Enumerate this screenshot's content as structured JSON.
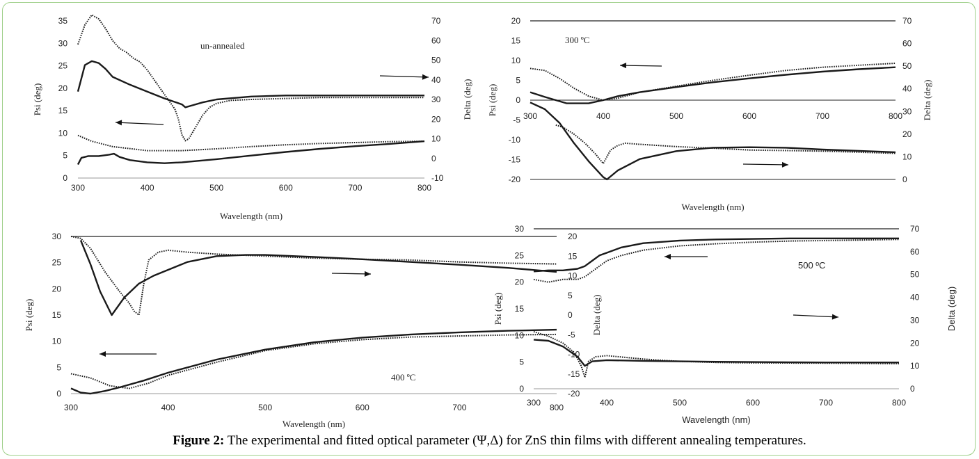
{
  "caption": {
    "label": "Figure 2:",
    "text": "The experimental and fitted optical parameter (Ψ,Δ) for ZnS thin films with different annealing temperatures."
  },
  "chart_data": [
    {
      "type": "line",
      "annotation": "un-annealed",
      "xlabel": "Wavelength  (nm)",
      "ylabel_left": "Psi (deg)",
      "ylabel_right": "Delta (deg)",
      "xlim": [
        300,
        800
      ],
      "xticks": [
        300,
        400,
        500,
        600,
        700,
        800
      ],
      "ylim_left": [
        0,
        35
      ],
      "yticks_left": [
        0,
        5,
        10,
        15,
        20,
        25,
        30,
        35
      ],
      "ylim_right": [
        -10,
        70
      ],
      "yticks_right": [
        -10,
        0,
        10,
        20,
        30,
        40,
        50,
        60,
        70
      ],
      "series": [
        {
          "axis": "right",
          "style": "dotted",
          "x": [
            300,
            310,
            320,
            330,
            340,
            350,
            360,
            370,
            380,
            390,
            400,
            410,
            420,
            430,
            440,
            445,
            450,
            455,
            460,
            470,
            480,
            490,
            500,
            520,
            550,
            600,
            650,
            700,
            750,
            800
          ],
          "y": [
            58,
            68,
            73,
            71,
            66,
            60,
            56,
            54,
            51,
            49,
            45,
            40,
            35,
            30,
            25,
            20,
            12,
            9,
            10,
            16,
            22,
            26,
            28,
            29.5,
            30,
            30.5,
            31,
            31,
            31,
            31
          ]
        },
        {
          "axis": "right",
          "style": "solid",
          "x": [
            300,
            310,
            320,
            330,
            340,
            350,
            375,
            400,
            425,
            450,
            455,
            465,
            480,
            500,
            550,
            600,
            650,
            700,
            750,
            800
          ],
          "y": [
            34,
            47.5,
            49.5,
            48.5,
            45.5,
            41.5,
            37.5,
            34,
            30.5,
            27.5,
            26,
            27,
            28.5,
            30,
            31.5,
            32,
            32,
            32,
            32,
            32
          ]
        },
        {
          "axis": "left",
          "style": "dotted",
          "x": [
            300,
            320,
            350,
            400,
            450,
            500,
            550,
            600,
            650,
            700,
            750,
            800
          ],
          "y": [
            9.5,
            8.2,
            7,
            6.1,
            6.1,
            6.5,
            7,
            7.4,
            7.7,
            7.9,
            8.1,
            8.2
          ]
        },
        {
          "axis": "left",
          "style": "solid",
          "x": [
            300,
            305,
            315,
            330,
            345,
            352,
            360,
            375,
            400,
            425,
            450,
            500,
            550,
            600,
            650,
            700,
            750,
            800
          ],
          "y": [
            3,
            4.5,
            4.9,
            4.9,
            5.2,
            5.4,
            4.7,
            4,
            3.5,
            3.3,
            3.5,
            4.2,
            5,
            5.8,
            6.5,
            7.1,
            7.6,
            8.2
          ]
        }
      ],
      "arrows": [
        {
          "dir": "left"
        },
        {
          "dir": "right"
        }
      ]
    },
    {
      "type": "line",
      "annotation": "300 ºC",
      "xlabel": "Wavelength  (nm)",
      "ylabel_left": "Psi (deg)",
      "ylabel_right": "Delta (deg)",
      "xlim": [
        300,
        800
      ],
      "xticks": [
        300,
        400,
        500,
        600,
        700,
        800
      ],
      "ylim_left": [
        -20,
        20
      ],
      "yticks_left": [
        -20,
        -15,
        -10,
        -5,
        0,
        5,
        10,
        15,
        20
      ],
      "ylim_right": [
        0,
        70
      ],
      "yticks_right": [
        0,
        10,
        20,
        30,
        40,
        50,
        60,
        70
      ],
      "series": [
        {
          "axis": "left",
          "style": "dotted",
          "x": [
            300,
            320,
            340,
            360,
            380,
            400,
            420,
            450,
            500,
            550,
            600,
            650,
            700,
            750,
            800
          ],
          "y": [
            8,
            7.5,
            5.5,
            3,
            1,
            0,
            0.5,
            2,
            3.5,
            5,
            6.3,
            7.5,
            8.3,
            8.8,
            9.3
          ]
        },
        {
          "axis": "left",
          "style": "solid",
          "x": [
            300,
            320,
            350,
            380,
            400,
            420,
            450,
            500,
            550,
            600,
            650,
            700,
            750,
            800
          ],
          "y": [
            2,
            0.8,
            -0.8,
            -0.8,
            0,
            1,
            2,
            3.3,
            4.5,
            5.5,
            6.4,
            7.2,
            7.8,
            8.3
          ]
        },
        {
          "axis": "right",
          "style": "dotted",
          "x": [
            335,
            345,
            360,
            375,
            390,
            400,
            410,
            420,
            430,
            450,
            500,
            550,
            600,
            700,
            800
          ],
          "y": [
            24,
            23,
            20,
            16,
            11,
            7,
            13,
            15,
            16,
            15.5,
            14.5,
            13.8,
            13,
            12.5,
            11.5
          ]
        },
        {
          "axis": "right",
          "style": "solid",
          "x": [
            300,
            320,
            340,
            360,
            380,
            400,
            405,
            420,
            450,
            500,
            550,
            600,
            650,
            700,
            750,
            800
          ],
          "y": [
            34,
            31,
            25,
            16,
            8,
            1,
            0,
            4,
            9,
            12.5,
            14,
            14.2,
            14,
            13.2,
            12.6,
            12
          ]
        }
      ],
      "arrows": [
        {
          "dir": "left"
        },
        {
          "dir": "right"
        }
      ]
    },
    {
      "type": "line",
      "annotation": "400 ºC",
      "xlabel": "Wavelength  (nm)",
      "ylabel_left": "Psi (deg)",
      "ylabel_right": "Delta (deg)",
      "xlim": [
        300,
        800
      ],
      "xticks": [
        300,
        400,
        500,
        600,
        700,
        800
      ],
      "ylim_left": [
        0,
        30
      ],
      "yticks_left": [
        0,
        5,
        10,
        15,
        20,
        25,
        30
      ],
      "ylim_right": [
        -20,
        20
      ],
      "yticks_right": [
        -20,
        -15,
        -10,
        -5,
        0,
        5,
        10,
        15,
        20
      ],
      "series": [
        {
          "axis": "right",
          "style": "dotted",
          "x": [
            300,
            310,
            320,
            335,
            350,
            360,
            365,
            370,
            375,
            380,
            390,
            400,
            420,
            450,
            500,
            550,
            600,
            650,
            700,
            750,
            800
          ],
          "y": [
            20,
            19.5,
            17,
            11,
            6,
            3,
            1,
            0,
            8,
            14,
            16,
            16.5,
            16,
            15.5,
            15,
            14.5,
            14.2,
            14,
            13.5,
            13.2,
            13
          ]
        },
        {
          "axis": "right",
          "style": "solid",
          "x": [
            310,
            320,
            330,
            342,
            355,
            370,
            385,
            400,
            420,
            450,
            480,
            500,
            550,
            600,
            650,
            700,
            750,
            800
          ],
          "y": [
            19,
            13,
            6,
            0,
            4.5,
            8,
            10,
            11.5,
            13.5,
            15,
            15.3,
            15.3,
            14.8,
            14.2,
            13.5,
            12.8,
            12,
            11
          ]
        },
        {
          "axis": "left",
          "style": "dotted",
          "x": [
            300,
            320,
            340,
            360,
            380,
            400,
            450,
            500,
            550,
            600,
            650,
            700,
            750,
            800
          ],
          "y": [
            3.8,
            3,
            1.5,
            1,
            2,
            3.5,
            6,
            8.2,
            9.5,
            10.3,
            10.8,
            11,
            11.2,
            11.3
          ]
        },
        {
          "axis": "left",
          "style": "solid",
          "x": [
            300,
            310,
            320,
            335,
            350,
            375,
            400,
            450,
            500,
            550,
            600,
            650,
            700,
            750,
            800
          ],
          "y": [
            1,
            0.2,
            0,
            0.5,
            1.2,
            2.5,
            4,
            6.5,
            8.4,
            9.8,
            10.7,
            11.3,
            11.7,
            12,
            12.2
          ]
        }
      ],
      "arrows": [
        {
          "dir": "left"
        },
        {
          "dir": "right"
        }
      ]
    },
    {
      "type": "line",
      "annotation": "500 ºC",
      "xlabel": "Wavelength (nm)",
      "ylabel_left": "Psi (deg)",
      "ylabel_right": "Delta (deg)",
      "xlim": [
        300,
        800
      ],
      "xticks": [
        300,
        400,
        500,
        600,
        700,
        800
      ],
      "ylim_left": [
        0,
        30
      ],
      "yticks_left": [
        0,
        5,
        10,
        15,
        20,
        25,
        30
      ],
      "ylim_right": [
        0,
        70
      ],
      "yticks_right": [
        0,
        10,
        20,
        30,
        40,
        50,
        60,
        70
      ],
      "series": [
        {
          "axis": "left",
          "style": "dotted",
          "x": [
            300,
            320,
            340,
            360,
            370,
            380,
            390,
            400,
            420,
            450,
            500,
            550,
            600,
            650,
            700,
            750,
            800
          ],
          "y": [
            20.5,
            20,
            20.5,
            20.5,
            21,
            22,
            23,
            24,
            25,
            26,
            26.8,
            27.2,
            27.5,
            27.7,
            27.8,
            27.9,
            28
          ]
        },
        {
          "axis": "left",
          "style": "solid",
          "x": [
            300,
            320,
            340,
            360,
            370,
            380,
            390,
            400,
            420,
            450,
            500,
            550,
            600,
            650,
            700,
            750,
            800
          ],
          "y": [
            22,
            22.2,
            22.2,
            22.5,
            23,
            24,
            25,
            25.5,
            26.5,
            27.3,
            27.8,
            28,
            28.1,
            28.2,
            28.2,
            28.2,
            28.2
          ]
        },
        {
          "axis": "right",
          "style": "dotted",
          "x": [
            300,
            320,
            340,
            355,
            365,
            370,
            375,
            385,
            400,
            450,
            500,
            550,
            600,
            700,
            800
          ],
          "y": [
            25,
            23,
            20,
            16,
            10,
            5,
            12,
            14,
            14.5,
            13,
            12,
            11.5,
            11.3,
            11.2,
            11
          ]
        },
        {
          "axis": "right",
          "style": "solid",
          "x": [
            300,
            320,
            340,
            360,
            370,
            380,
            400,
            450,
            500,
            550,
            600,
            650,
            700,
            750,
            800
          ],
          "y": [
            21.5,
            21,
            18.5,
            14,
            10,
            12,
            12.5,
            12.2,
            12,
            11.8,
            11.7,
            11.6,
            11.5,
            11.5,
            11.5
          ]
        }
      ],
      "arrows": [
        {
          "dir": "left"
        },
        {
          "dir": "right"
        }
      ]
    }
  ]
}
